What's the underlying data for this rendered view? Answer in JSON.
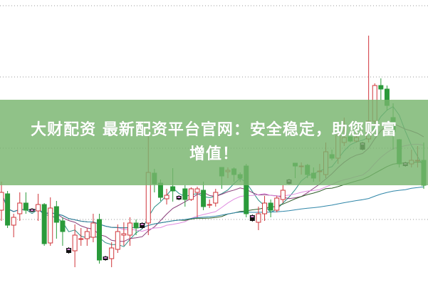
{
  "banner": {
    "line1": "大财配资 最新配资平台官网：安全稳定，助您财富",
    "line2": "增值！"
  },
  "colors": {
    "up": "#d0343a",
    "down": "#2a9a3a",
    "doji": "#111111",
    "banner": "#78b46e",
    "grid": "#999999",
    "ma": [
      "#2e8f88",
      "#8a3d7a",
      "#e08ce0",
      "#2f5f2a",
      "#2f86a8"
    ]
  },
  "chart_data": {
    "type": "candlestick",
    "title": "",
    "xlabel": "",
    "ylabel": "",
    "axes_shown": false,
    "grid": "horizontal dotted",
    "moving_averages": [
      5,
      10,
      20,
      30,
      60
    ],
    "ylim": [
      0,
      40
    ],
    "candles": [
      [
        10.5,
        14.5,
        9.0,
        13.0
      ],
      [
        12.8,
        13.2,
        8.0,
        8.4
      ],
      [
        8.4,
        10.0,
        6.7,
        9.5
      ],
      [
        10.0,
        13.0,
        9.0,
        11.5
      ],
      [
        11.5,
        13.0,
        10.0,
        10.5
      ],
      [
        10.7,
        10.8,
        10.2,
        10.3
      ],
      [
        10.4,
        12.8,
        9.0,
        11.3
      ],
      [
        11.3,
        11.5,
        5.5,
        5.8
      ],
      [
        5.9,
        12.3,
        5.5,
        10.8
      ],
      [
        11.0,
        11.8,
        6.5,
        8.8
      ],
      [
        9.0,
        9.5,
        5.5,
        7.5
      ],
      [
        5.2,
        5.3,
        4.4,
        4.5
      ],
      [
        4.8,
        8.5,
        2.5,
        7.0
      ],
      [
        6.5,
        8.0,
        5.5,
        6.5
      ],
      [
        6.5,
        8.0,
        5.5,
        7.5
      ],
      [
        6.7,
        10.0,
        6.0,
        8.7
      ],
      [
        9.2,
        10.0,
        3.0,
        3.5
      ],
      [
        4.0,
        4.1,
        3.4,
        3.5
      ],
      [
        3.7,
        6.0,
        2.5,
        5.2
      ],
      [
        5.0,
        8.5,
        4.5,
        7.5
      ],
      [
        7.0,
        8.8,
        5.5,
        7.2
      ],
      [
        7.0,
        9.5,
        5.5,
        8.7
      ],
      [
        8.7,
        9.2,
        7.0,
        8.0
      ],
      [
        8.7,
        8.8,
        7.9,
        8.0
      ],
      [
        8.7,
        21.0,
        7.0,
        15.8
      ],
      [
        15.7,
        16.3,
        13.0,
        14.2
      ],
      [
        14.3,
        14.8,
        11.8,
        12.3
      ],
      [
        12.1,
        13.5,
        11.3,
        12.6
      ],
      [
        13.8,
        16.4,
        11.7,
        13.2
      ],
      [
        12.5,
        12.6,
        11.9,
        12.0
      ],
      [
        13.5,
        14.0,
        11.0,
        12.0
      ],
      [
        12.0,
        13.7,
        11.8,
        13.5
      ],
      [
        13.0,
        13.8,
        9.5,
        13.5
      ],
      [
        13.3,
        14.5,
        10.5,
        11.0
      ],
      [
        11.3,
        12.0,
        10.8,
        11.3
      ],
      [
        11.5,
        13.5,
        11.0,
        13.0
      ],
      [
        16.5,
        16.5,
        13.5,
        15.3
      ],
      [
        15.9,
        16.5,
        15.0,
        16.1
      ],
      [
        16.3,
        16.5,
        14.5,
        15.5
      ],
      [
        15.5,
        15.8,
        14.5,
        15.0
      ],
      [
        16.7,
        17.0,
        9.5,
        10.0
      ],
      [
        9.8,
        9.9,
        8.9,
        9.0
      ],
      [
        8.8,
        11.0,
        7.7,
        10.0
      ],
      [
        10.0,
        12.5,
        9.0,
        11.5
      ],
      [
        11.5,
        12.0,
        9.5,
        10.5
      ],
      [
        10.5,
        12.5,
        10.2,
        12.2
      ],
      [
        12.0,
        14.0,
        11.5,
        13.3
      ],
      [
        14.8,
        14.9,
        14.1,
        14.2
      ],
      [
        17.1,
        17.1,
        15.0,
        16.7
      ],
      [
        16.7,
        17.2,
        15.5,
        16.7
      ],
      [
        16.8,
        17.0,
        15.0,
        15.5
      ],
      [
        15.7,
        16.5,
        14.5,
        15.0
      ],
      [
        16.0,
        17.0,
        14.5,
        16.0
      ],
      [
        15.5,
        20.0,
        15.0,
        18.7
      ],
      [
        18.3,
        19.0,
        17.5,
        17.8
      ],
      [
        17.8,
        21.5,
        17.0,
        21.0
      ],
      [
        20.0,
        23.5,
        19.5,
        20.7
      ],
      [
        20.8,
        21.0,
        20.0,
        20.2
      ],
      [
        20.2,
        21.5,
        20.0,
        20.7
      ],
      [
        20.0,
        20.1,
        18.9,
        19.0
      ],
      [
        20.5,
        35.0,
        20.0,
        23.0
      ],
      [
        23.0,
        28.3,
        22.5,
        28.0
      ],
      [
        28.0,
        29.0,
        26.0,
        27.5
      ],
      [
        27.5,
        28.0,
        24.5,
        25.2
      ],
      [
        23.5,
        25.5,
        19.0,
        21.5
      ],
      [
        20.4,
        20.5,
        16.5,
        17.0
      ],
      [
        17.2,
        17.3,
        16.6,
        16.7
      ],
      [
        17.0,
        19.0,
        16.5,
        17.5
      ],
      [
        17.5,
        19.5,
        16.5,
        17.5
      ],
      [
        17.5,
        20.0,
        13.5,
        14.0
      ]
    ],
    "doji_marked": [
      5,
      11,
      17,
      23,
      29,
      41,
      47,
      59,
      66
    ]
  }
}
